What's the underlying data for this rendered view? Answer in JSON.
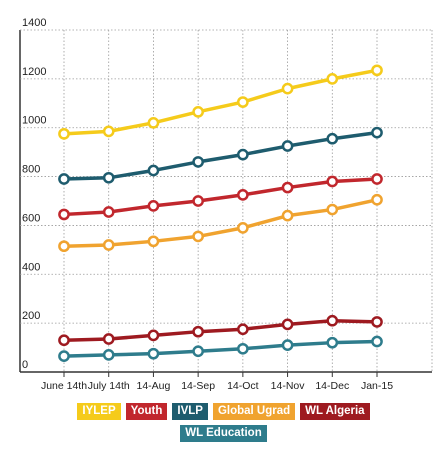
{
  "chart_data": {
    "type": "line",
    "categories": [
      "June 14th",
      "July 14th",
      "14-Aug",
      "14-Sep",
      "14-Oct",
      "14-Nov",
      "14-Dec",
      "Jan-15"
    ],
    "ylim": [
      0,
      1400
    ],
    "yticks": [
      0,
      200,
      400,
      600,
      800,
      1000,
      1200,
      1400
    ],
    "grid": true,
    "legend_position": "bottom",
    "series": [
      {
        "name": "IYLEP",
        "color": "#f5cb1b",
        "values": [
          975,
          985,
          1020,
          1065,
          1105,
          1160,
          1200,
          1235
        ]
      },
      {
        "name": "Youth",
        "color": "#c1272d",
        "values": [
          645,
          655,
          680,
          700,
          725,
          755,
          780,
          790
        ]
      },
      {
        "name": "IVLP",
        "color": "#1e5c6e",
        "values": [
          790,
          795,
          825,
          860,
          890,
          925,
          955,
          980
        ]
      },
      {
        "name": "Global Ugrad",
        "color": "#f0a32f",
        "values": [
          515,
          520,
          535,
          555,
          590,
          640,
          665,
          705
        ]
      },
      {
        "name": "WL Algeria",
        "color": "#9e1a20",
        "values": [
          130,
          135,
          150,
          165,
          175,
          195,
          210,
          205
        ]
      },
      {
        "name": "WL Education",
        "color": "#2e7c8c",
        "values": [
          65,
          70,
          75,
          85,
          95,
          110,
          120,
          125
        ]
      }
    ]
  }
}
